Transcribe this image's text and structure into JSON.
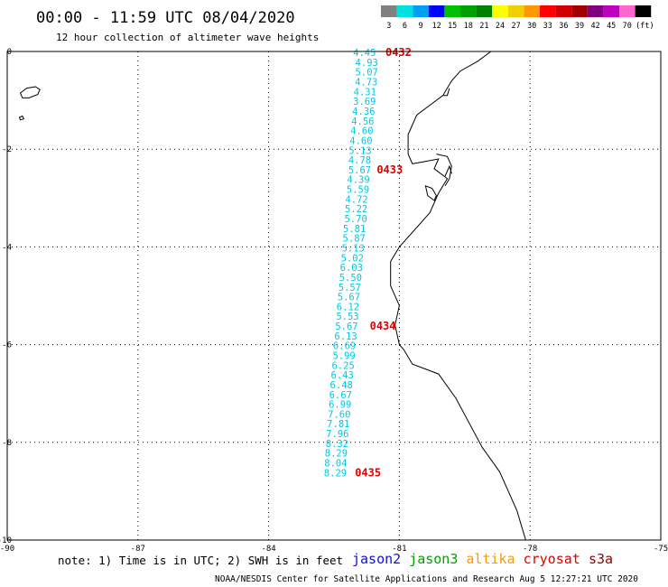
{
  "header": {
    "title": "00:00 - 11:59 UTC 08/04/2020",
    "subtitle": "12 hour collection of altimeter wave heights"
  },
  "colorbar": {
    "labels": [
      "3",
      "6",
      "9",
      "12",
      "15",
      "18",
      "21",
      "24",
      "27",
      "30",
      "33",
      "36",
      "39",
      "42",
      "45",
      "70",
      "(ft)"
    ],
    "colors": [
      "#808080",
      "#00e0e0",
      "#00a0f0",
      "#0000ff",
      "#00c000",
      "#00a000",
      "#008000",
      "#ffff00",
      "#f0d000",
      "#ff9900",
      "#ff0000",
      "#d00000",
      "#a00000",
      "#800080",
      "#c000c0",
      "#ff66cc",
      "#000000"
    ]
  },
  "axes": {
    "x_ticks": [
      "-90",
      "-87",
      "-84",
      "-81",
      "-78",
      "-75"
    ],
    "y_ticks": [
      "0",
      "-2",
      "-4",
      "-6",
      "-8",
      "-10"
    ],
    "lon_range": [
      -90,
      -75
    ],
    "lat_range": [
      -10,
      0
    ]
  },
  "track": {
    "color": "#00c8e8",
    "points": [
      {
        "lat": -0.02,
        "lon": -81.8,
        "value": "4.45"
      },
      {
        "lat": -0.22,
        "lon": -81.75,
        "value": "4.93"
      },
      {
        "lat": -0.42,
        "lon": -81.75,
        "value": "5.07"
      },
      {
        "lat": -0.62,
        "lon": -81.76,
        "value": "4.73"
      },
      {
        "lat": -0.82,
        "lon": -81.79,
        "value": "4.31"
      },
      {
        "lat": -1.02,
        "lon": -81.8,
        "value": "3.69"
      },
      {
        "lat": -1.22,
        "lon": -81.82,
        "value": "4.36"
      },
      {
        "lat": -1.42,
        "lon": -81.84,
        "value": "4.56"
      },
      {
        "lat": -1.62,
        "lon": -81.86,
        "value": "4.60"
      },
      {
        "lat": -1.82,
        "lon": -81.88,
        "value": "4.60"
      },
      {
        "lat": -2.02,
        "lon": -81.9,
        "value": "5.13"
      },
      {
        "lat": -2.22,
        "lon": -81.91,
        "value": "4.78"
      },
      {
        "lat": -2.42,
        "lon": -81.91,
        "value": "5.67"
      },
      {
        "lat": -2.62,
        "lon": -81.94,
        "value": "4.39"
      },
      {
        "lat": -2.82,
        "lon": -81.95,
        "value": "5.59"
      },
      {
        "lat": -3.02,
        "lon": -81.98,
        "value": "4.72"
      },
      {
        "lat": -3.22,
        "lon": -81.99,
        "value": "5.22"
      },
      {
        "lat": -3.42,
        "lon": -82.0,
        "value": "5.70"
      },
      {
        "lat": -3.62,
        "lon": -82.03,
        "value": "5.81"
      },
      {
        "lat": -3.82,
        "lon": -82.04,
        "value": "5.87"
      },
      {
        "lat": -4.02,
        "lon": -82.06,
        "value": "5.13"
      },
      {
        "lat": -4.22,
        "lon": -82.08,
        "value": "5.02"
      },
      {
        "lat": -4.42,
        "lon": -82.1,
        "value": "6.03"
      },
      {
        "lat": -4.62,
        "lon": -82.12,
        "value": "5.50"
      },
      {
        "lat": -4.82,
        "lon": -82.14,
        "value": "5.57"
      },
      {
        "lat": -5.02,
        "lon": -82.16,
        "value": "5.67"
      },
      {
        "lat": -5.22,
        "lon": -82.18,
        "value": "6.12"
      },
      {
        "lat": -5.42,
        "lon": -82.19,
        "value": "5.53"
      },
      {
        "lat": -5.62,
        "lon": -82.21,
        "value": "5.67"
      },
      {
        "lat": -5.82,
        "lon": -82.23,
        "value": "6.13"
      },
      {
        "lat": -6.02,
        "lon": -82.26,
        "value": "6.69"
      },
      {
        "lat": -6.22,
        "lon": -82.27,
        "value": "5.99"
      },
      {
        "lat": -6.42,
        "lon": -82.29,
        "value": "6.25"
      },
      {
        "lat": -6.62,
        "lon": -82.31,
        "value": "6.43"
      },
      {
        "lat": -6.82,
        "lon": -82.33,
        "value": "6.48"
      },
      {
        "lat": -7.02,
        "lon": -82.35,
        "value": "6.67"
      },
      {
        "lat": -7.22,
        "lon": -82.36,
        "value": "6.99"
      },
      {
        "lat": -7.42,
        "lon": -82.38,
        "value": "7.60"
      },
      {
        "lat": -7.62,
        "lon": -82.4,
        "value": "7.81"
      },
      {
        "lat": -7.82,
        "lon": -82.42,
        "value": "7.96"
      },
      {
        "lat": -8.02,
        "lon": -82.43,
        "value": "8.32"
      },
      {
        "lat": -8.22,
        "lon": -82.45,
        "value": "8.29"
      },
      {
        "lat": -8.42,
        "lon": -82.46,
        "value": "8.04"
      },
      {
        "lat": -8.62,
        "lon": -82.47,
        "value": "8.29"
      }
    ]
  },
  "pass_times": [
    {
      "label": "0432",
      "lat": -0.02,
      "lon": -81.02
    },
    {
      "label": "0433",
      "lat": -2.42,
      "lon": -81.22
    },
    {
      "label": "0434",
      "lat": -5.62,
      "lon": -81.38
    },
    {
      "label": "0435",
      "lat": -8.62,
      "lon": -81.72
    }
  ],
  "pass_time_color": "#e00000",
  "coastline": {
    "mainland": [
      [
        -78.9,
        0.0
      ],
      [
        -79.2,
        -0.2
      ],
      [
        -79.6,
        -0.4
      ],
      [
        -79.8,
        -0.6
      ],
      [
        -80.0,
        -0.9
      ],
      [
        -80.3,
        -1.1
      ],
      [
        -80.6,
        -1.3
      ],
      [
        -80.8,
        -1.7
      ],
      [
        -80.8,
        -2.1
      ],
      [
        -80.7,
        -2.3
      ],
      [
        -80.1,
        -2.2
      ],
      [
        -80.2,
        -2.4
      ],
      [
        -79.9,
        -2.6
      ],
      [
        -80.1,
        -2.9
      ],
      [
        -80.3,
        -3.3
      ],
      [
        -80.6,
        -3.6
      ],
      [
        -81.0,
        -4.0
      ],
      [
        -81.2,
        -4.3
      ],
      [
        -81.2,
        -4.8
      ],
      [
        -81.0,
        -5.2
      ],
      [
        -81.1,
        -5.6
      ],
      [
        -81.0,
        -6.0
      ],
      [
        -80.9,
        -6.1
      ],
      [
        -80.7,
        -6.4
      ],
      [
        -80.1,
        -6.6
      ],
      [
        -79.7,
        -7.1
      ],
      [
        -79.4,
        -7.6
      ],
      [
        -79.1,
        -8.1
      ],
      [
        -78.7,
        -8.6
      ],
      [
        -78.5,
        -9.0
      ],
      [
        -78.3,
        -9.4
      ],
      [
        -78.2,
        -9.7
      ],
      [
        -78.1,
        -10.0
      ]
    ],
    "shore_segments": [
      [
        [
          -80.0,
          -0.9
        ],
        [
          -79.9,
          -0.9
        ],
        [
          -79.85,
          -0.75
        ]
      ],
      [
        [
          -80.15,
          -2.1
        ],
        [
          -79.9,
          -2.15
        ],
        [
          -79.8,
          -2.35
        ],
        [
          -79.85,
          -2.6
        ],
        [
          -79.95,
          -2.75
        ]
      ],
      [
        [
          -79.95,
          -2.55
        ],
        [
          -79.85,
          -2.35
        ],
        [
          -79.8,
          -2.5
        ]
      ]
    ],
    "islands": [
      [
        [
          -89.7,
          -0.85
        ],
        [
          -89.55,
          -0.75
        ],
        [
          -89.35,
          -0.72
        ],
        [
          -89.25,
          -0.78
        ],
        [
          -89.3,
          -0.88
        ],
        [
          -89.5,
          -0.95
        ],
        [
          -89.65,
          -0.95
        ],
        [
          -89.7,
          -0.85
        ]
      ],
      [
        [
          -89.72,
          -1.35
        ],
        [
          -89.65,
          -1.32
        ],
        [
          -89.62,
          -1.38
        ],
        [
          -89.7,
          -1.4
        ],
        [
          -89.72,
          -1.35
        ]
      ],
      [
        [
          -80.4,
          -2.75
        ],
        [
          -80.25,
          -2.8
        ],
        [
          -80.15,
          -2.95
        ],
        [
          -80.2,
          -3.05
        ],
        [
          -80.35,
          -2.95
        ],
        [
          -80.4,
          -2.75
        ]
      ]
    ]
  },
  "footer": {
    "note": "note: 1) Time is in UTC; 2) SWH is in feet",
    "missions": [
      {
        "label": "jason2",
        "color": "#1010e0"
      },
      {
        "label": "jason3",
        "color": "#00a000"
      },
      {
        "label": "altika",
        "color": "#ff9900"
      },
      {
        "label": "cryosat",
        "color": "#e00000"
      },
      {
        "label": "s3a",
        "color": "#8b0000"
      }
    ],
    "credit": "NOAA/NESDIS Center for Satellite Applications and Research   Aug  5 12:27:21 UTC 2020"
  }
}
